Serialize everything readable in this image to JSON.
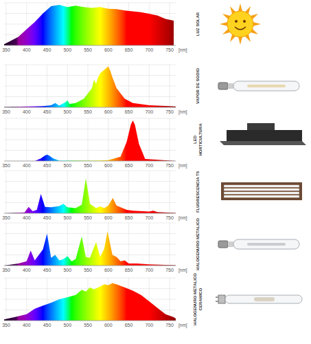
{
  "chart_data": [
    {
      "type": "area",
      "title": "LUZ SOLAR",
      "x_label": "[nm]",
      "x": [
        345,
        360,
        380,
        400,
        420,
        440,
        460,
        480,
        500,
        520,
        540,
        560,
        580,
        600,
        620,
        640,
        660,
        680,
        700,
        720,
        740,
        760
      ],
      "values": [
        3,
        10,
        20,
        38,
        55,
        75,
        92,
        95,
        90,
        93,
        90,
        88,
        90,
        86,
        85,
        82,
        80,
        78,
        74,
        70,
        62,
        58
      ],
      "xlim": [
        345,
        765
      ],
      "xticks": [
        350,
        400,
        450,
        500,
        550,
        600,
        650,
        700,
        750
      ],
      "ylim": [
        0,
        100
      ],
      "yticks": [
        0,
        25,
        50,
        75,
        100
      ],
      "grid": true,
      "tick_labels": "x"
    },
    {
      "type": "area",
      "title": "VAPOR DE SODIO",
      "x_label": "[nm]",
      "x": [
        345,
        400,
        440,
        460,
        470,
        480,
        495,
        500,
        505,
        520,
        540,
        560,
        565,
        570,
        575,
        580,
        590,
        595,
        600,
        605,
        610,
        620,
        640,
        660,
        700,
        750,
        765
      ],
      "values": [
        1,
        2,
        3,
        5,
        10,
        4,
        12,
        16,
        8,
        10,
        20,
        45,
        65,
        55,
        70,
        80,
        88,
        92,
        96,
        85,
        70,
        45,
        20,
        10,
        5,
        3,
        2
      ],
      "xlim": [
        345,
        765
      ],
      "xticks": [
        350,
        400,
        450,
        500,
        550,
        600,
        650,
        700,
        750
      ],
      "ylim": [
        0,
        100
      ],
      "yticks": [
        0,
        25,
        50,
        75,
        100
      ],
      "grid": true,
      "tick_labels": "x"
    },
    {
      "type": "area",
      "title": [
        "LED",
        "HORTICULTURA"
      ],
      "x_label": "[nm]",
      "x": [
        345,
        420,
        435,
        445,
        450,
        455,
        465,
        480,
        560,
        600,
        630,
        645,
        655,
        660,
        665,
        675,
        690,
        765
      ],
      "values": [
        0,
        0,
        6,
        13,
        15,
        13,
        6,
        1,
        1,
        2,
        10,
        45,
        85,
        95,
        85,
        40,
        5,
        0
      ],
      "xlim": [
        345,
        765
      ],
      "xticks": [
        350,
        400,
        450,
        500,
        550,
        600,
        650,
        700,
        750
      ],
      "ylim": [
        0,
        100
      ],
      "yticks": [
        0,
        25,
        50,
        75,
        100
      ],
      "grid": true,
      "tick_labels": "x"
    },
    {
      "type": "area",
      "title": "FLUORESCENCIA T5",
      "x_label": "[nm]",
      "x": [
        345,
        395,
        405,
        415,
        425,
        435,
        445,
        460,
        480,
        490,
        500,
        520,
        535,
        545,
        555,
        570,
        580,
        590,
        600,
        611,
        620,
        630,
        645,
        660,
        700,
        710,
        720,
        765
      ],
      "values": [
        0,
        2,
        15,
        5,
        8,
        45,
        15,
        14,
        17,
        22,
        14,
        12,
        20,
        82,
        22,
        12,
        16,
        12,
        18,
        36,
        18,
        14,
        8,
        6,
        4,
        6,
        3,
        1
      ],
      "xlim": [
        345,
        765
      ],
      "xticks": [
        350,
        400,
        450,
        500,
        550,
        600,
        650,
        700,
        750
      ],
      "ylim": [
        0,
        100
      ],
      "yticks": [
        0,
        25,
        50,
        75,
        100
      ],
      "grid": true,
      "tick_labels": "x"
    },
    {
      "type": "area",
      "title": "HALOGENURO METALICO",
      "x_label": "[nm]",
      "x": [
        345,
        380,
        400,
        410,
        420,
        430,
        440,
        450,
        460,
        470,
        480,
        490,
        500,
        510,
        520,
        535,
        545,
        555,
        570,
        580,
        590,
        598,
        610,
        620,
        630,
        640,
        650,
        670,
        700,
        765
      ],
      "values": [
        0,
        5,
        10,
        35,
        12,
        25,
        38,
        75,
        18,
        25,
        12,
        15,
        22,
        10,
        15,
        68,
        20,
        18,
        55,
        20,
        40,
        80,
        25,
        20,
        10,
        12,
        5,
        5,
        3,
        1
      ],
      "xlim": [
        345,
        765
      ],
      "xticks": [
        350,
        400,
        450,
        500,
        550,
        600,
        650,
        700,
        750
      ],
      "ylim": [
        0,
        100
      ],
      "yticks": [
        0,
        25,
        50,
        75,
        100
      ],
      "grid": true,
      "tick_labels": "x"
    },
    {
      "type": "area",
      "title": [
        "HALOGENURO METALICO",
        "CERAMICO"
      ],
      "x_label": "[nm]",
      "x": [
        345,
        370,
        400,
        420,
        440,
        460,
        480,
        500,
        520,
        535,
        545,
        555,
        565,
        580,
        590,
        600,
        610,
        620,
        640,
        660,
        680,
        700,
        720,
        740,
        760,
        765
      ],
      "values": [
        3,
        8,
        15,
        28,
        35,
        42,
        50,
        55,
        60,
        72,
        68,
        78,
        73,
        80,
        85,
        83,
        88,
        85,
        78,
        70,
        60,
        45,
        30,
        15,
        8,
        5
      ],
      "xlim": [
        345,
        765
      ],
      "xticks": [
        350,
        400,
        450,
        500,
        550,
        600,
        650,
        700,
        750
      ],
      "ylim": [
        0,
        100
      ],
      "yticks": [
        0,
        25,
        50,
        75,
        100
      ],
      "grid": true,
      "tick_labels": "x"
    }
  ]
}
